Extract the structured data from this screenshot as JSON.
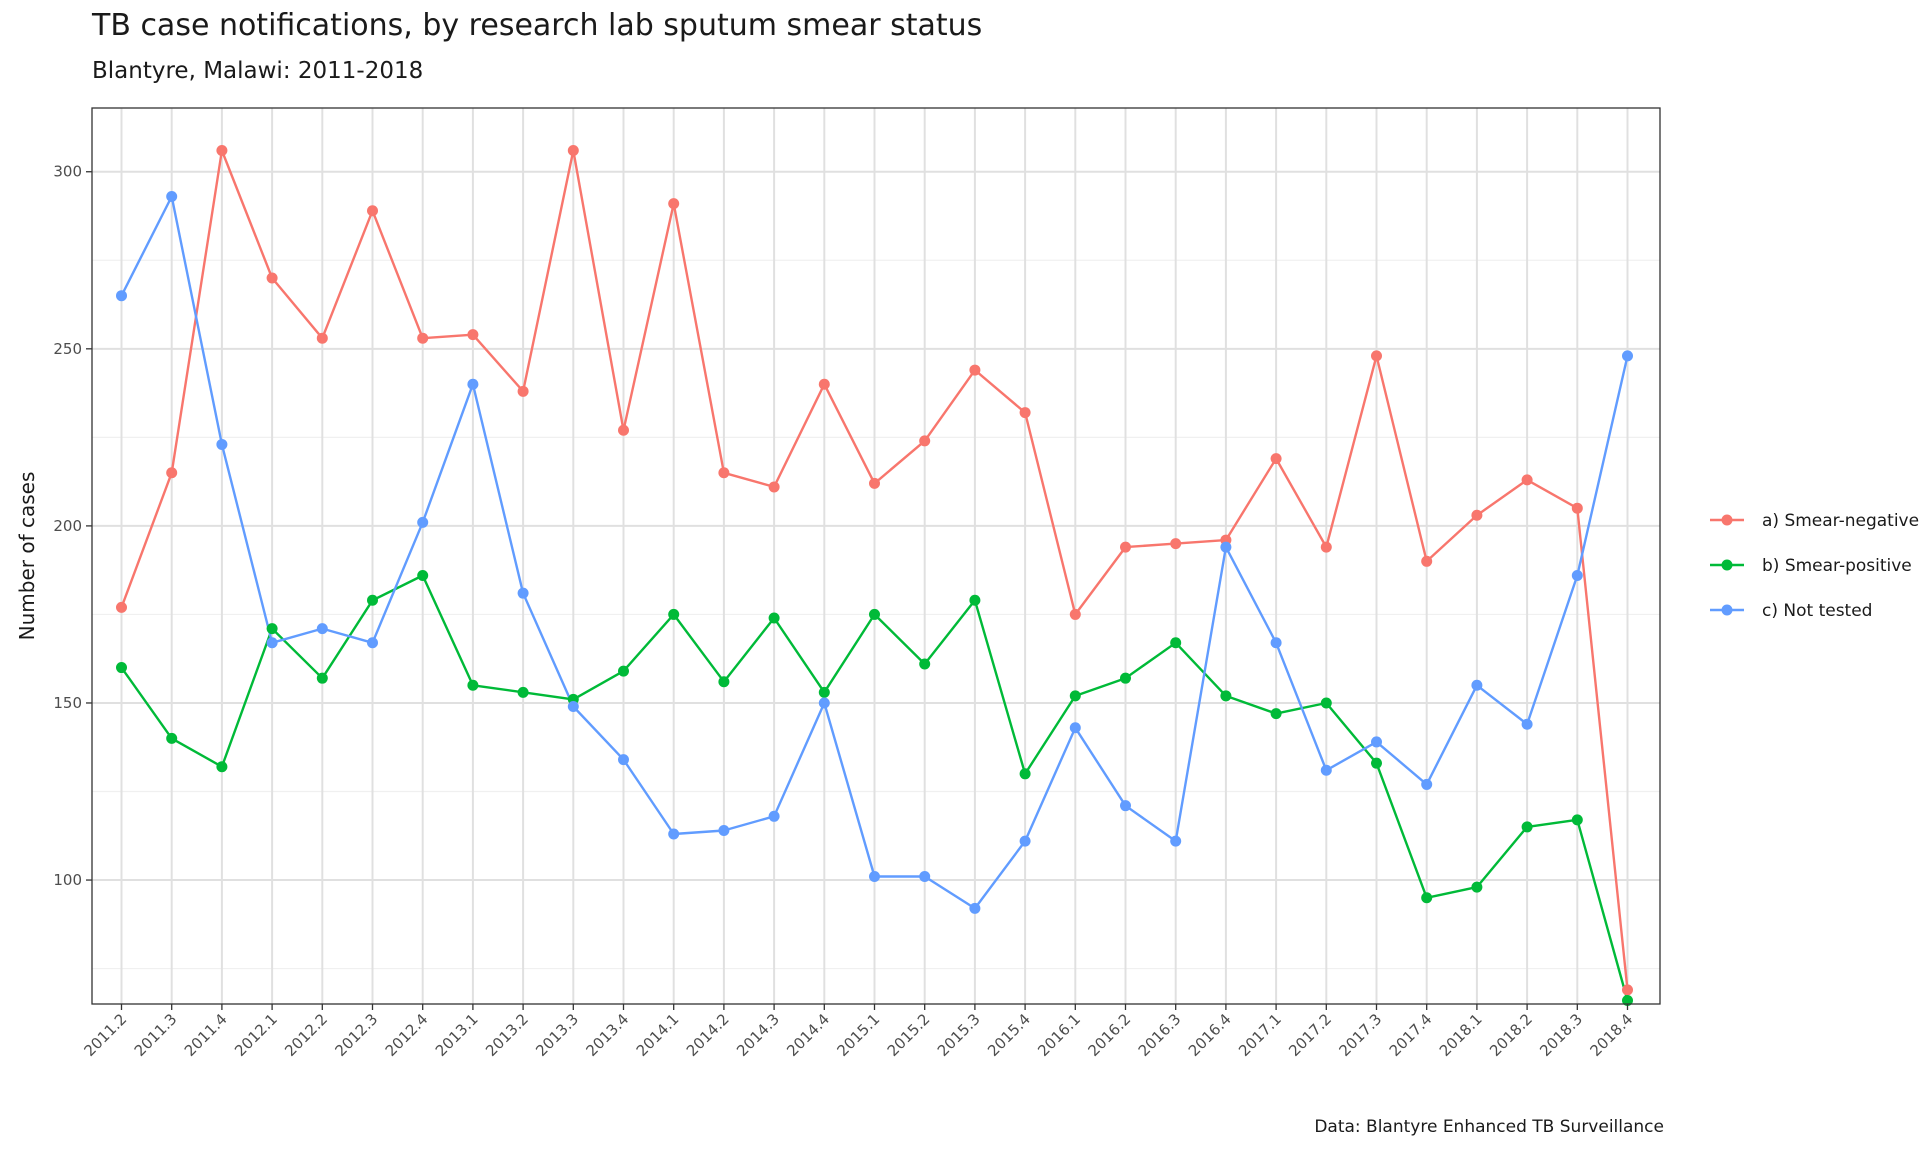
{
  "chart_data": {
    "type": "line",
    "title": "TB case notifications, by research lab sputum smear status",
    "subtitle": "Blantyre, Malawi: 2011-2018",
    "caption": "Data: Blantyre Enhanced TB Surveillance",
    "xlabel": "",
    "ylabel": "Number of cases",
    "ylim": [
      65,
      318
    ],
    "yticks": [
      100,
      150,
      200,
      250,
      300
    ],
    "grid": true,
    "legend_position": "right",
    "categories": [
      "2011.2",
      "2011.3",
      "2011.4",
      "2012.1",
      "2012.2",
      "2012.3",
      "2012.4",
      "2013.1",
      "2013.2",
      "2013.3",
      "2013.4",
      "2014.1",
      "2014.2",
      "2014.3",
      "2014.4",
      "2015.1",
      "2015.2",
      "2015.3",
      "2015.4",
      "2016.1",
      "2016.2",
      "2016.3",
      "2016.4",
      "2017.1",
      "2017.2",
      "2017.3",
      "2017.4",
      "2018.1",
      "2018.2",
      "2018.3",
      "2018.4"
    ],
    "series": [
      {
        "name": "a) Smear-negative",
        "color": "#F8766D",
        "values": [
          177,
          215,
          306,
          270,
          253,
          289,
          253,
          254,
          238,
          306,
          227,
          291,
          215,
          211,
          240,
          212,
          224,
          244,
          232,
          175,
          194,
          195,
          196,
          219,
          194,
          248,
          190,
          203,
          213,
          205,
          69
        ]
      },
      {
        "name": "b) Smear-positive",
        "color": "#00BA38",
        "values": [
          160,
          140,
          132,
          171,
          157,
          179,
          186,
          155,
          153,
          151,
          159,
          175,
          156,
          174,
          153,
          175,
          161,
          179,
          130,
          152,
          157,
          167,
          152,
          147,
          150,
          133,
          95,
          98,
          115,
          117,
          66
        ]
      },
      {
        "name": "c) Not tested",
        "color": "#619CFF",
        "values": [
          265,
          293,
          223,
          167,
          171,
          167,
          201,
          240,
          181,
          149,
          134,
          113,
          114,
          118,
          150,
          101,
          101,
          92,
          111,
          143,
          121,
          111,
          194,
          167,
          131,
          139,
          127,
          155,
          144,
          186,
          248
        ]
      }
    ]
  }
}
